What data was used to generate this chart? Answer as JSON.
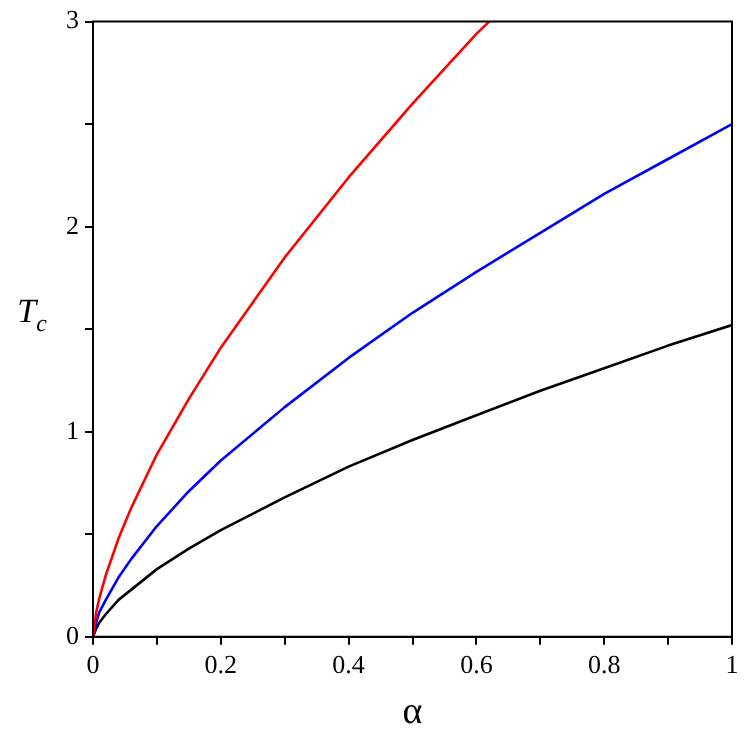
{
  "chart_data": {
    "type": "line",
    "xlabel": "α",
    "ylabel": "T$_{c}$",
    "xlim": [
      0,
      1
    ],
    "ylim": [
      0,
      3
    ],
    "xticks": [
      0,
      {
        "value": 0.1,
        "label": null
      },
      0.2,
      {
        "value": 0.3,
        "label": null
      },
      0.4,
      {
        "value": 0.5,
        "label": null
      },
      0.6,
      {
        "value": 0.7,
        "label": null
      },
      0.8,
      {
        "value": 0.9,
        "label": null
      },
      1
    ],
    "yticks": [
      0,
      {
        "value": 0.5,
        "label": null
      },
      1,
      {
        "value": 1.5,
        "label": null
      },
      2,
      {
        "value": 2.5,
        "label": null
      },
      3
    ],
    "grid": false,
    "legend": false,
    "marker": "none",
    "line_style": "solid",
    "x": [
      0,
      0.005,
      0.01,
      0.02,
      0.04,
      0.06,
      0.1,
      0.15,
      0.2,
      0.3,
      0.4,
      0.5,
      0.6,
      0.7,
      0.8,
      0.9,
      1
    ],
    "series": [
      {
        "color": "#ff0000",
        "x": [
          0,
          0.005,
          0.01,
          0.02,
          0.04,
          0.06,
          0.1,
          0.15,
          0.2,
          0.3,
          0.4,
          0.5,
          0.6,
          0.62
        ],
        "values": [
          0,
          0.12,
          0.19,
          0.3,
          0.48,
          0.63,
          0.89,
          1.16,
          1.41,
          1.85,
          2.24,
          2.6,
          2.94,
          3
        ]
      },
      {
        "color": "#0000ff",
        "values": [
          0,
          0.07,
          0.12,
          0.18,
          0.29,
          0.38,
          0.54,
          0.71,
          0.86,
          1.12,
          1.36,
          1.58,
          1.78,
          1.97,
          2.16,
          2.33,
          2.5
        ]
      },
      {
        "color": "#000000",
        "values": [
          0,
          0.04,
          0.07,
          0.11,
          0.18,
          0.23,
          0.33,
          0.43,
          0.52,
          0.68,
          0.83,
          0.96,
          1.08,
          1.2,
          1.31,
          1.42,
          1.52
        ]
      }
    ]
  }
}
